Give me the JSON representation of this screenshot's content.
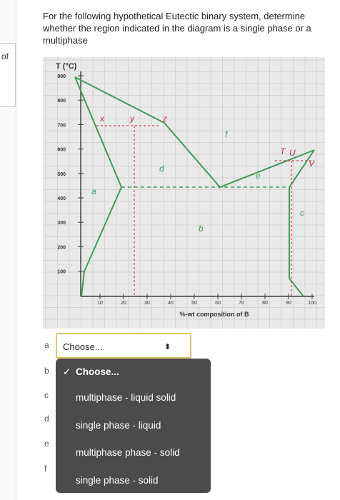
{
  "side_text": "of",
  "question": "For the following hypothetical Eutectic binary system, determine whether the region indicated in the diagram is a single phase or a multiphase",
  "diagram": {
    "y_axis_title": "T (°C)",
    "y_ticks": [
      900,
      800,
      700,
      600,
      500,
      400,
      300,
      200,
      100
    ],
    "x_ticks": [
      10,
      20,
      30,
      40,
      50,
      60,
      70,
      80,
      90,
      100
    ],
    "x_axis_title": "%-wt composition of B",
    "region_labels": [
      "x",
      "y",
      "z",
      "f",
      "d",
      "e",
      "a",
      "b",
      "c",
      "T",
      "U",
      "V"
    ]
  },
  "items": [
    "a",
    "b",
    "c",
    "d",
    "e",
    "f"
  ],
  "select": {
    "placeholder": "Choose...",
    "arrow": "⬍"
  },
  "dropdown": {
    "check": "✓",
    "options": [
      "Choose...",
      "multiphase - liquid solid",
      "single phase - liquid",
      "multiphase phase - solid",
      "single phase - solid"
    ]
  }
}
